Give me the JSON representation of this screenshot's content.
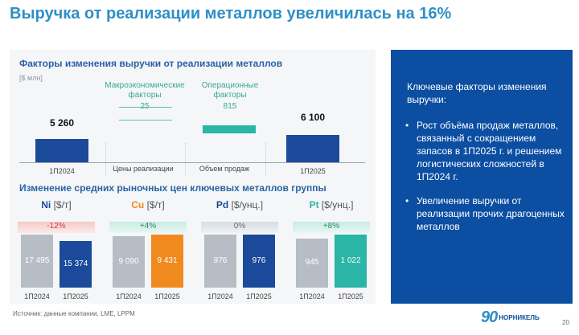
{
  "title": "Выручка от реализации металлов увеличилась на 16%",
  "waterfall": {
    "title": "Факторы изменения выручки от реализации металлов",
    "unit": "[$ млн]",
    "macro_label": "Макроэкономические факторы",
    "macro_value": "25",
    "oper_label": "Операционные факторы",
    "oper_value": "815",
    "start_value": "5 260",
    "end_value": "6 100",
    "x_labels": [
      "1П2024",
      "Цены реализации",
      "Объем продаж",
      "1П2025"
    ]
  },
  "prices": {
    "title": "Изменение средних рыночных цен ключевых металлов группы",
    "period_labels": [
      "1П2024",
      "1П2025"
    ],
    "metals": [
      {
        "symbol": "Ni",
        "unit": "[$/т]",
        "change": "-12%",
        "v2024": "17 495",
        "v2025": "15 374"
      },
      {
        "symbol": "Cu",
        "unit": "[$/т]",
        "change": "+4%",
        "v2024": "9 090",
        "v2025": "9 431"
      },
      {
        "symbol": "Pd",
        "unit": "[$/унц.]",
        "change": "0%",
        "v2024": "976",
        "v2025": "976"
      },
      {
        "symbol": "Pt",
        "unit": "[$/унц.]",
        "change": "+8%",
        "v2024": "945",
        "v2025": "1 022"
      }
    ]
  },
  "chart_data": [
    {
      "type": "bar",
      "categories": [
        "1П2024",
        "Цены реализации",
        "Объем продаж",
        "1П2025"
      ],
      "values": [
        5260,
        25,
        815,
        6100
      ],
      "title": "Факторы изменения выручки от реализации металлов",
      "ylabel": "[$ млн]"
    },
    {
      "type": "bar",
      "categories": [
        "1П2024",
        "1П2025"
      ],
      "series": [
        {
          "name": "Ni",
          "values": [
            17495,
            15374
          ]
        },
        {
          "name": "Cu",
          "values": [
            9090,
            9431
          ]
        },
        {
          "name": "Pd",
          "values": [
            976,
            976
          ]
        },
        {
          "name": "Pt",
          "values": [
            945,
            1022
          ]
        }
      ],
      "title": "Изменение средних рыночных цен ключевых металлов группы"
    }
  ],
  "colors": {
    "title": "#2e8fc6",
    "navy": "#1b4a9a",
    "teal": "#2ab5a6",
    "grey_bar": "#b7bdc4",
    "ni": "#1b4a9a",
    "cu": "#f08a1e",
    "pd": "#1b4a9a",
    "pt": "#2ab5a6",
    "panel": "#0b4ea2",
    "neg": "#d23b3b",
    "pos": "#2a8a5a"
  },
  "right_panel": {
    "heading": "Ключевые факторы изменения выручки:",
    "bullets": [
      "Рост объёма продаж металлов, связанный с сокращением запасов в 1П2025 г. и решением логистических сложностей в 1П2024 г.",
      "Увеличение выручки от реализации прочих драгоценных металлов"
    ]
  },
  "footer": {
    "source": "Источник: данные компании, LME, LPPM",
    "logo_mark": "90",
    "logo_text": "НОРНИКЕЛЬ",
    "page": "20"
  }
}
